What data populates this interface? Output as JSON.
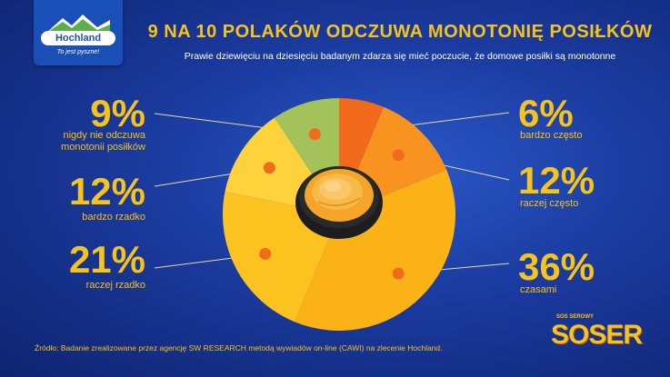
{
  "logo": {
    "name": "Hochland",
    "tagline": "To jest pyszne!"
  },
  "header": {
    "title": "9 NA 10 POLAKÓW ODCZUWA MONOTONIĘ POSIŁKÓW",
    "subtitle": "Prawie dziewięciu na dziesięciu badanym zdarza się mieć poczucie, że domowe posiłki są monotonne"
  },
  "chart_data": {
    "type": "pie",
    "title": "9 NA 10 POLAKÓW ODCZUWA MONOTONIĘ POSIŁKÓW",
    "slices": [
      {
        "label": "bardzo często",
        "value": 6,
        "display": "6%",
        "color": "#f26a1b"
      },
      {
        "label": "raczej często",
        "value": 12,
        "display": "12%",
        "color": "#f7931e"
      },
      {
        "label": "czasami",
        "value": 36,
        "display": "36%",
        "color": "#fbb216"
      },
      {
        "label": "raczej rzadko",
        "value": 21,
        "display": "21%",
        "color": "#fcc320"
      },
      {
        "label": "bardzo rzadko",
        "value": 12,
        "display": "12%",
        "color": "#fdd23a"
      },
      {
        "label": "nigdy nie odczuwa monotonii posiłków",
        "value": 9,
        "display": "9%",
        "color": "#a4c25a"
      }
    ],
    "center": "cheese-sauce-bowl"
  },
  "labels": {
    "nigdy": {
      "pct": "9%",
      "line1": "nigdy nie odczuwa",
      "line2": "monotonii posiłków"
    },
    "bardzo_rzadko": {
      "pct": "12%",
      "text": "bardzo rzadko"
    },
    "raczej_rzadko": {
      "pct": "21%",
      "text": "raczej rzadko"
    },
    "bardzo_czesto": {
      "pct": "6%",
      "text": "bardzo często"
    },
    "raczej_czesto": {
      "pct": "12%",
      "text": "raczej często"
    },
    "czasami": {
      "pct": "36%",
      "text": "czasami"
    }
  },
  "footnote": "Źródło: Badanie zrealizowane przez agencję SW RESEARCH metodą wywiadów on-line (CAWI) na zlecenie Hochland.",
  "brand": {
    "top": "SOS SEROWY",
    "main": "SOSER"
  },
  "colors": {
    "accent": "#f6c21c",
    "background": "#1a3a9e",
    "marker": "#f26a1b"
  }
}
